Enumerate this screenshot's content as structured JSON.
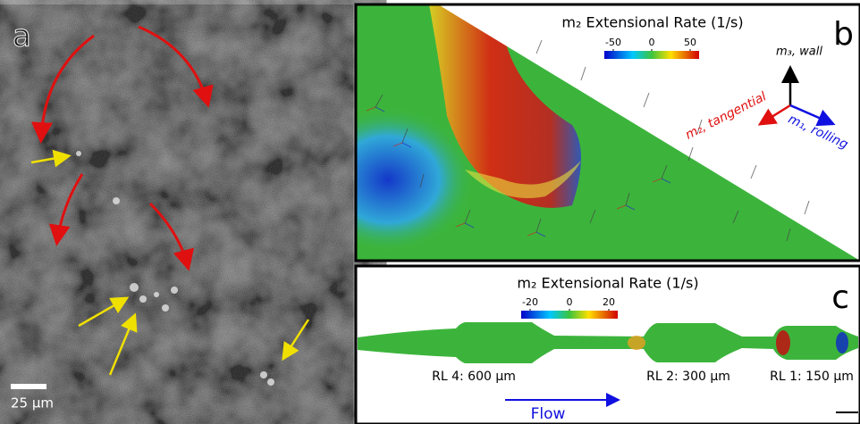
{
  "panels": {
    "a": {
      "label": "a",
      "scale_bar": "25 μm"
    },
    "b": {
      "label": "b",
      "colorbar": {
        "title": "m₂ Extensional Rate (1/s)",
        "ticks": [
          -50,
          0,
          50
        ]
      },
      "axes": {
        "wall": "m₃, wall",
        "tangential": "m₂, tangential",
        "rolling": "m₁, rolling"
      }
    },
    "c": {
      "label": "c",
      "colorbar": {
        "title": "m₂ Extensional Rate (1/s)",
        "ticks": [
          -20,
          0,
          20
        ]
      },
      "regions": [
        "RL 4: 600 μm",
        "RL 2: 300 μm",
        "RL 1: 150 μm"
      ],
      "flow": "Flow"
    }
  }
}
